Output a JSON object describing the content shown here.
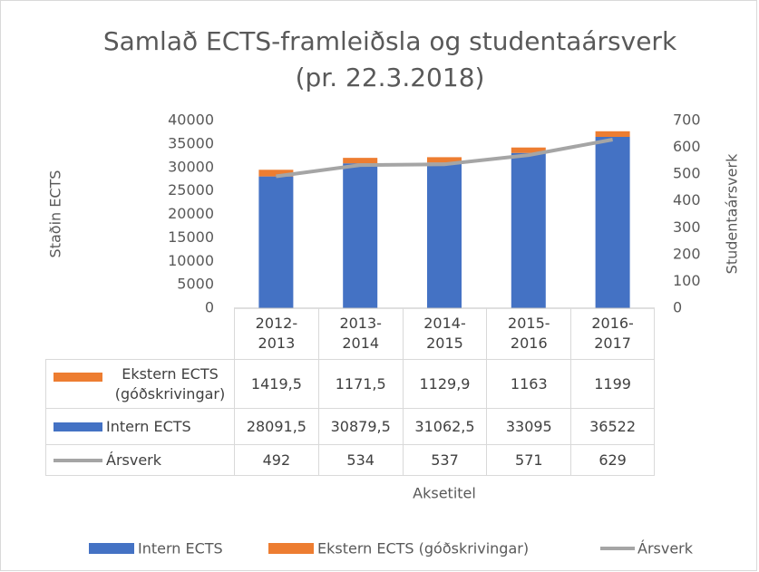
{
  "chart_data": {
    "type": "bar",
    "stacked": true,
    "title": "Samlað ECTS-framleiðsla og studentaársverk",
    "subtitle": "(pr. 22.3.2018)",
    "x_label": "Aksetitel",
    "y_label": "Staðin ECTS",
    "y2_label": "Studentaársverk",
    "categories": [
      "2012-2013",
      "2013-2014",
      "2014-2015",
      "2015-2016",
      "2016-2017"
    ],
    "series": [
      {
        "name": "Intern ECTS",
        "color": "#4472c4",
        "type": "bar",
        "values": [
          28091.5,
          30879.5,
          31062.5,
          33095,
          36522
        ],
        "value_labels": [
          "28091,5",
          "30879,5",
          "31062,5",
          "33095",
          "36522"
        ]
      },
      {
        "name": "Ekstern ECTS (góðskrivingar)",
        "color": "#ed7d31",
        "type": "bar",
        "values": [
          1419.5,
          1171.5,
          1129.9,
          1163,
          1199
        ],
        "value_labels": [
          "1419,5",
          "1171,5",
          "1129,9",
          "1163",
          "1199"
        ]
      },
      {
        "name": "Ársverk",
        "color": "#a5a5a5",
        "type": "line",
        "axis": "y2",
        "values": [
          492,
          534,
          537,
          571,
          629
        ]
      }
    ],
    "table_order": [
      1,
      0,
      2
    ],
    "ylim": [
      0,
      40000
    ],
    "yticks": [
      0,
      5000,
      10000,
      15000,
      20000,
      25000,
      30000,
      35000,
      40000
    ],
    "y2lim": [
      0,
      700
    ],
    "y2ticks": [
      0,
      100,
      200,
      300,
      400,
      500,
      600,
      700
    ],
    "legend": "bottom",
    "grid": false
  }
}
